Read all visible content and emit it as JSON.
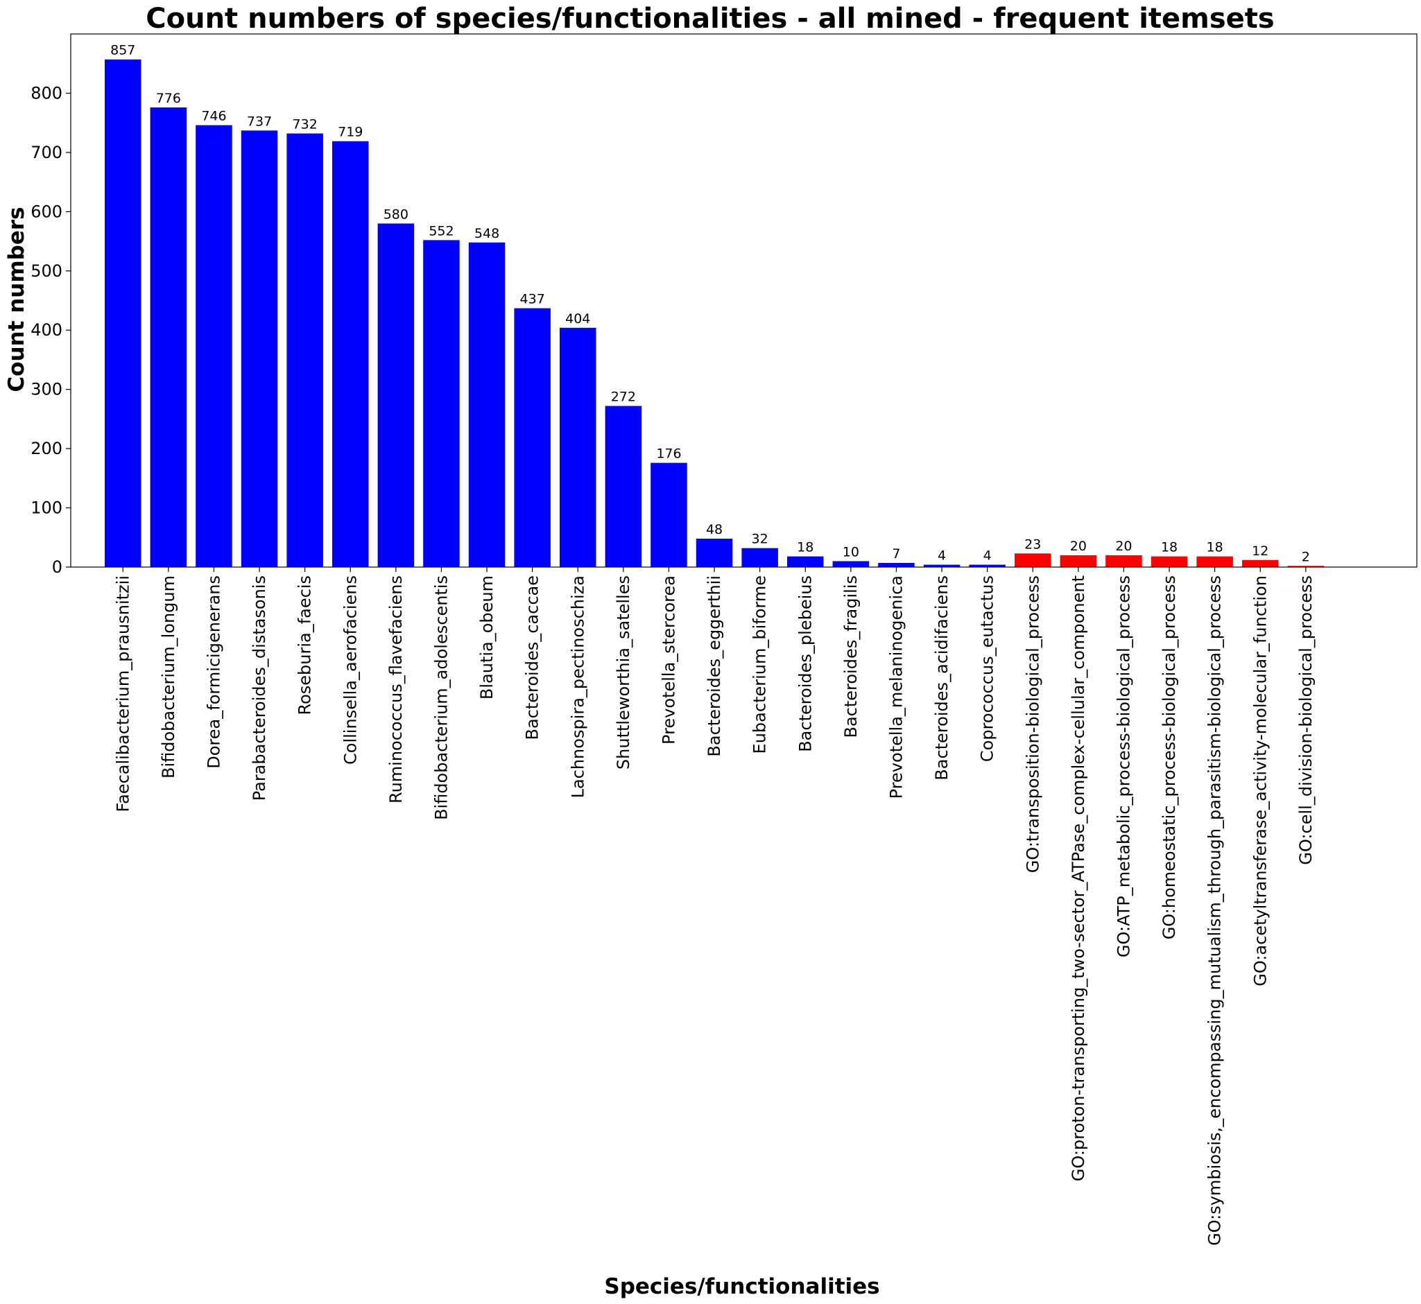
{
  "chart_data": {
    "type": "bar",
    "title": "Count numbers of species/functionalities - all mined - frequent itemsets",
    "xlabel": "Species/functionalities",
    "ylabel": "Count numbers",
    "ylim": [
      0,
      900
    ],
    "yticks": [
      0,
      100,
      200,
      300,
      400,
      500,
      600,
      700,
      800
    ],
    "grid": false,
    "legend": "none",
    "colors": {
      "species": "#0000ff",
      "functionality": "#ff0000"
    },
    "categories": [
      "Faecalibacterium_prausnitzii",
      "Bifidobacterium_longum",
      "Dorea_formicigenerans",
      "Parabacteroides_distasonis",
      "Roseburia_faecis",
      "Collinsella_aerofaciens",
      "Ruminococcus_flavefaciens",
      "Bifidobacterium_adolescentis",
      "Blautia_obeum",
      "Bacteroides_caccae",
      "Lachnospira_pectinoschiza",
      "Shuttleworthia_satelles",
      "Prevotella_stercorea",
      "Bacteroides_eggerthii",
      "Eubacterium_biforme",
      "Bacteroides_plebeius",
      "Bacteroides_fragilis",
      "Prevotella_melaninogenica",
      "Bacteroides_acidifaciens",
      "Coprococcus_eutactus",
      "GO:transposition-biological_process",
      "GO:proton-transporting_two-sector_ATPase_complex-cellular_component",
      "GO:ATP_metabolic_process-biological_process",
      "GO:homeostatic_process-biological_process",
      "GO:symbiosis,_encompassing_mutualism_through_parasitism-biological_process",
      "GO:acetyltransferase_activity-molecular_function",
      "GO:cell_division-biological_process"
    ],
    "values": [
      857,
      776,
      746,
      737,
      732,
      719,
      580,
      552,
      548,
      437,
      404,
      272,
      176,
      48,
      32,
      18,
      10,
      7,
      4,
      4,
      23,
      20,
      20,
      18,
      18,
      12,
      2
    ],
    "groups": [
      "species",
      "species",
      "species",
      "species",
      "species",
      "species",
      "species",
      "species",
      "species",
      "species",
      "species",
      "species",
      "species",
      "species",
      "species",
      "species",
      "species",
      "species",
      "species",
      "species",
      "functionality",
      "functionality",
      "functionality",
      "functionality",
      "functionality",
      "functionality",
      "functionality"
    ]
  }
}
